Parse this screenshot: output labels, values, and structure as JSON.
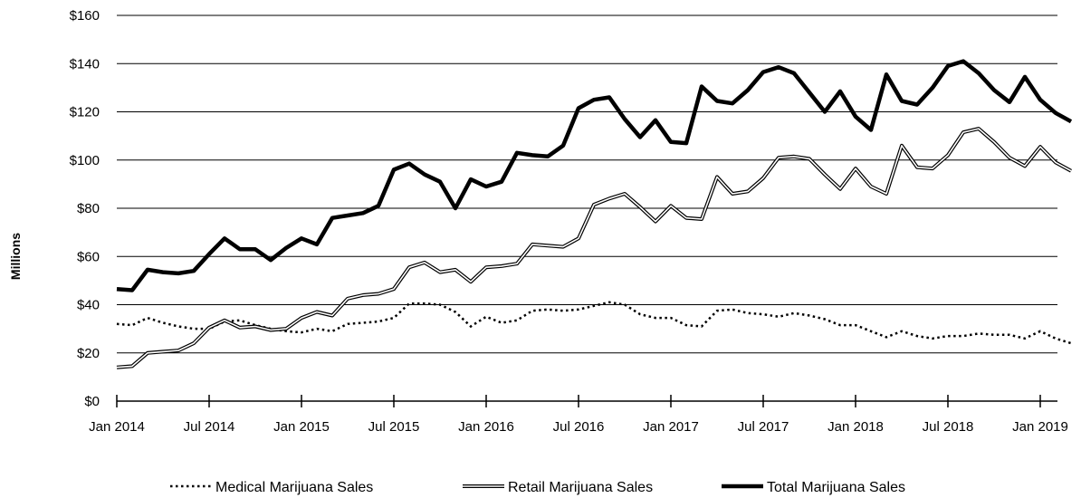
{
  "chart_data": {
    "type": "line",
    "title": "",
    "ylabel": "Millions",
    "xlabel": "",
    "ylim": [
      0,
      160
    ],
    "y_ticks": [
      "$0",
      "$20",
      "$40",
      "$60",
      "$80",
      "$100",
      "$120",
      "$140",
      "$160"
    ],
    "y_tick_values": [
      0,
      20,
      40,
      60,
      80,
      100,
      120,
      140,
      160
    ],
    "x_tick_labels": [
      "Jan 2014",
      "Jul 2014",
      "Jan 2015",
      "Jul 2015",
      "Jan 2016",
      "Jul 2016",
      "Jan 2017",
      "Jul 2017",
      "Jan 2018",
      "Jul 2018",
      "Jan 2019"
    ],
    "grid": "horizontal",
    "legend_position": "bottom",
    "x": [
      "Jan 2014",
      "Feb 2014",
      "Mar 2014",
      "Apr 2014",
      "May 2014",
      "Jun 2014",
      "Jul 2014",
      "Aug 2014",
      "Sep 2014",
      "Oct 2014",
      "Nov 2014",
      "Dec 2014",
      "Jan 2015",
      "Feb 2015",
      "Mar 2015",
      "Apr 2015",
      "May 2015",
      "Jun 2015",
      "Jul 2015",
      "Aug 2015",
      "Sep 2015",
      "Oct 2015",
      "Nov 2015",
      "Dec 2015",
      "Jan 2016",
      "Feb 2016",
      "Mar 2016",
      "Apr 2016",
      "May 2016",
      "Jun 2016",
      "Jul 2016",
      "Aug 2016",
      "Sep 2016",
      "Oct 2016",
      "Nov 2016",
      "Dec 2016",
      "Jan 2017",
      "Feb 2017",
      "Mar 2017",
      "Apr 2017",
      "May 2017",
      "Jun 2017",
      "Jul 2017",
      "Aug 2017",
      "Sep 2017",
      "Oct 2017",
      "Nov 2017",
      "Dec 2017",
      "Jan 2018",
      "Feb 2018",
      "Mar 2018",
      "Apr 2018",
      "May 2018",
      "Jun 2018",
      "Jul 2018",
      "Aug 2018",
      "Sep 2018",
      "Oct 2018",
      "Nov 2018",
      "Dec 2018",
      "Jan 2019",
      "Feb 2019",
      "Mar 2019"
    ],
    "series": [
      {
        "name": "Medical Marijuana Sales",
        "style": "dotted",
        "color": "#000000",
        "values": [
          32,
          31.5,
          34.5,
          32.5,
          31,
          30,
          30,
          33,
          33.5,
          31.5,
          30,
          29,
          28.5,
          30,
          29,
          32,
          32.5,
          33,
          34.5,
          40.5,
          40.5,
          40,
          37,
          31,
          35,
          32.5,
          33.5,
          37.5,
          38,
          37.5,
          38,
          39.5,
          41,
          40,
          36,
          34.5,
          34.5,
          31.5,
          31,
          37.5,
          38,
          36.5,
          36,
          35,
          36.5,
          35.5,
          34,
          31.5,
          31.5,
          29,
          26.5,
          29,
          27,
          26,
          27,
          27,
          28,
          27.5,
          27.5,
          26,
          29,
          26,
          24
        ]
      },
      {
        "name": "Retail Marijuana Sales",
        "style": "double",
        "color": "#000000",
        "values": [
          14,
          14.5,
          20,
          20.5,
          21,
          24,
          30.5,
          33.5,
          30.5,
          31,
          29.5,
          30,
          34.5,
          37,
          35.5,
          42.5,
          44,
          44.5,
          46.5,
          55.5,
          57.5,
          53.5,
          54.5,
          49.5,
          55.5,
          56,
          57,
          65,
          64.5,
          64,
          67.5,
          81.5,
          84,
          86,
          80.5,
          74.5,
          81,
          76,
          75.5,
          93,
          86,
          87,
          92.5,
          101,
          101.5,
          100.5,
          94,
          88,
          96.5,
          89,
          86,
          106,
          97,
          96.5,
          102,
          111.5,
          113,
          107.5,
          101,
          97.5,
          105.5,
          99,
          95.5
        ]
      },
      {
        "name": "Total Marijuana Sales",
        "style": "bold",
        "color": "#000000",
        "values": [
          46.5,
          46,
          54.5,
          53.5,
          53,
          54,
          61,
          67.5,
          63,
          63,
          58.5,
          63.5,
          67.5,
          65,
          76,
          77,
          78,
          81,
          96,
          98.5,
          94,
          91,
          80,
          92,
          89,
          91,
          103,
          102,
          101.5,
          106,
          121.5,
          125,
          126,
          117,
          109.5,
          116.5,
          107.5,
          107,
          130.5,
          124.5,
          123.5,
          129,
          136.5,
          138.5,
          136,
          128,
          120,
          128.5,
          118,
          112.5,
          135.5,
          124.5,
          123,
          130,
          139,
          141,
          136,
          129,
          124,
          134.5,
          125,
          119.5,
          116
        ]
      }
    ]
  }
}
